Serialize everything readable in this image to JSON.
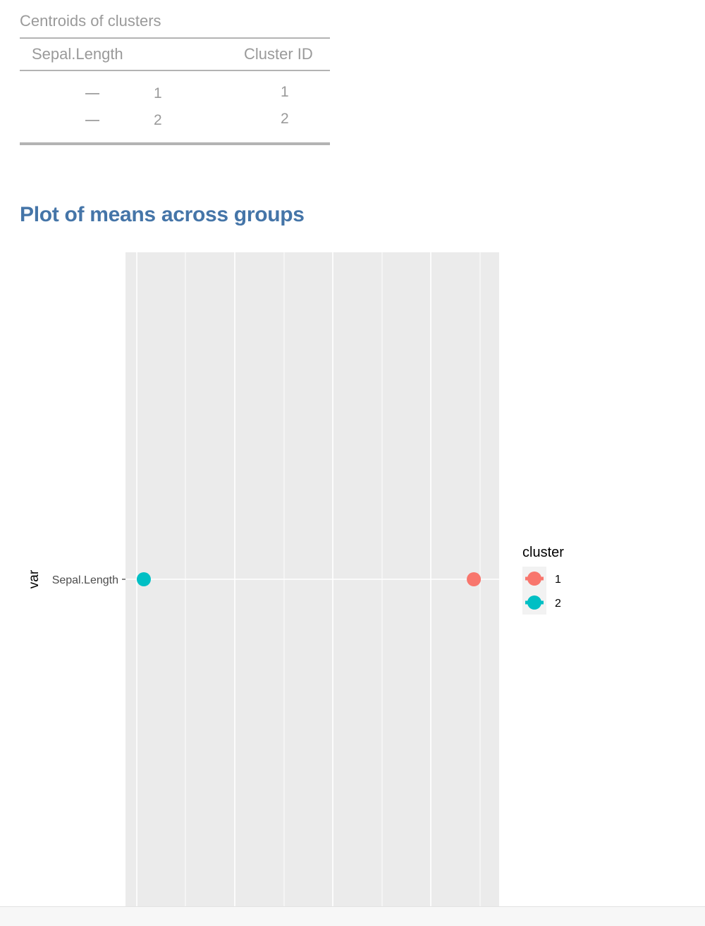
{
  "table": {
    "caption": "Centroids of clusters",
    "headers": [
      "Sepal.Length",
      "Cluster ID"
    ],
    "rows": [
      {
        "sparkline": "—",
        "value": "1",
        "cluster_id": "1"
      },
      {
        "sparkline": "—",
        "value": "2",
        "cluster_id": "2"
      }
    ]
  },
  "plot": {
    "heading": "Plot of means across groups"
  },
  "chart_data": {
    "type": "scatter",
    "title": "",
    "xlabel": "",
    "ylabel": "var",
    "y_categories": [
      "Sepal.Length"
    ],
    "x_range": [
      0,
      1
    ],
    "grid": true,
    "legend": {
      "title": "cluster",
      "position": "right",
      "entries": [
        "1",
        "2"
      ]
    },
    "series": [
      {
        "name": "1",
        "color": "#F8766D",
        "points": [
          {
            "x": 0.96,
            "y": "Sepal.Length"
          }
        ]
      },
      {
        "name": "2",
        "color": "#00BFC4",
        "points": [
          {
            "x": 0.02,
            "y": "Sepal.Length"
          }
        ]
      }
    ],
    "colors": {
      "panel": "#EBEBEB",
      "grid": "#FFFFFF"
    }
  }
}
